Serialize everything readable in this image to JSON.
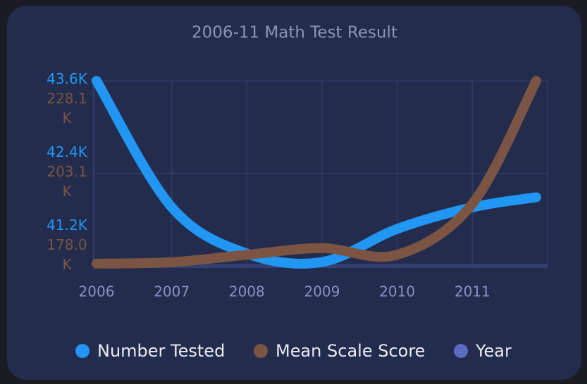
{
  "chart_data": {
    "type": "line",
    "title": "2006-11 Math Test Result",
    "x": [
      2006,
      2007,
      2008,
      2009,
      2010,
      2011,
      2011.85
    ],
    "xlim": [
      2006,
      2012
    ],
    "xticks": [
      2006,
      2007,
      2008,
      2009,
      2010,
      2011
    ],
    "ylim": [
      41200,
      43600
    ],
    "yticks": [
      {
        "value": 41200,
        "label": "41.2K"
      },
      {
        "value": 42400,
        "label": "42.4K"
      },
      {
        "value": 43600,
        "label": "43.6K"
      }
    ],
    "y2lim": [
      178000,
      228100
    ],
    "y2ticks": [
      {
        "value": 178000,
        "label": "178.0 K"
      },
      {
        "value": 203100,
        "label": "203.1 K"
      },
      {
        "value": 228100,
        "label": "228.1 K"
      }
    ],
    "grid": true,
    "legend": "bottom",
    "series": [
      {
        "name": "Number Tested",
        "color": "#2196f3",
        "values": [
          43600,
          41960,
          41360,
          41250,
          41680,
          41960,
          42090
        ]
      },
      {
        "name": "Mean Scale Score",
        "color": "#7b5443",
        "axis": "y2",
        "values": [
          178600,
          179000,
          181000,
          182800,
          181000,
          194800,
          228100
        ]
      },
      {
        "name": "Year",
        "color": "#5c6bc0"
      }
    ]
  }
}
